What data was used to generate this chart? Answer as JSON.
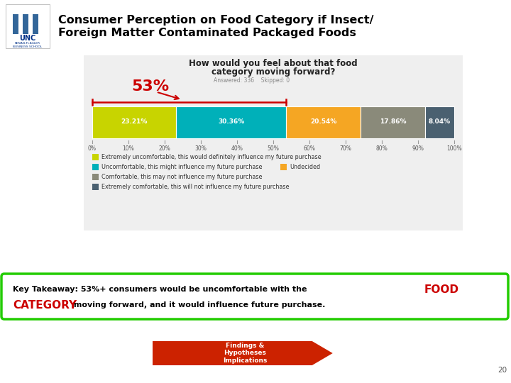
{
  "title_line1": "Consumer Perception on Food Category if Insect/",
  "title_line2": "Foreign Matter Contaminated Packaged Foods",
  "chart_question_line1": "How would you feel about that food",
  "chart_question_line2": "category moving forward?",
  "answered_text": "Answered: 336    Skipped: 0",
  "pct_label": "53%",
  "bar_values": [
    23.21,
    30.36,
    20.54,
    17.86,
    8.04
  ],
  "bar_colors": [
    "#c8d400",
    "#00b0b9",
    "#f5a623",
    "#8a8a7a",
    "#4a6070"
  ],
  "bar_labels": [
    "23.21%",
    "30.36%",
    "20.54%",
    "17.86%",
    "8.04%"
  ],
  "legend_items": [
    {
      "color": "#c8d400",
      "text": "Extremely uncomfortable, this would definitely influence my future purchase",
      "col": 0
    },
    {
      "color": "#00b0b9",
      "text": "Uncomfortable, this might influence my future purchase",
      "col": 0
    },
    {
      "color": "#f5a623",
      "text": "Undecided",
      "col": 1
    },
    {
      "color": "#8a8a7a",
      "text": "Comfortable, this may not influence my future purchase",
      "col": 0
    },
    {
      "color": "#4a6070",
      "text": "Extremely comfortable, this will not influence my future purchase",
      "col": 0
    }
  ],
  "arrow_label": "Findings &\nHypotheses\nImplications",
  "bg_color": "#ffffff",
  "chart_bg": "#efefef",
  "pct_color": "#cc0000",
  "key_border_color": "#22cc00",
  "arrow_color": "#cc2200",
  "page_num": "20"
}
